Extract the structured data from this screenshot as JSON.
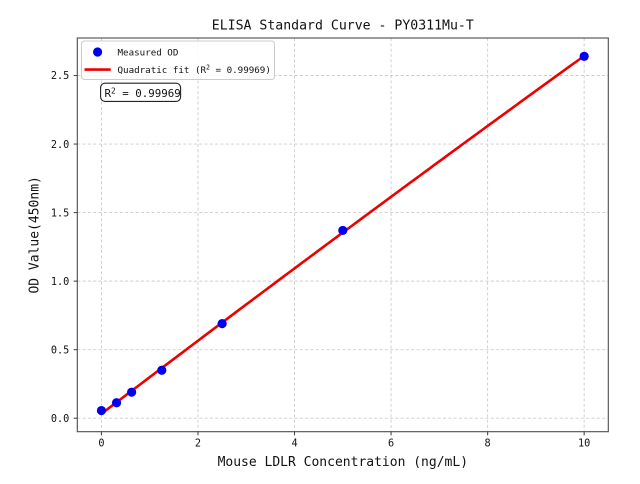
{
  "chart_data": {
    "type": "scatter",
    "title": "ELISA Standard Curve - PY0311Mu-T",
    "xlabel": "Mouse LDLR Concentration (ng/mL)",
    "ylabel": "OD Value(450nm)",
    "xlim": [
      -0.5,
      10.5
    ],
    "ylim": [
      -0.0983,
      2.7736
    ],
    "xticks": [
      0,
      2,
      4,
      6,
      8,
      10
    ],
    "yticks": [
      0.0,
      0.5,
      1.0,
      1.5,
      2.0,
      2.5
    ],
    "grid": true,
    "grid_style": "dashed",
    "legend_position": "upper-left",
    "series": [
      {
        "name": "Measured OD",
        "type": "scatter",
        "marker": "circle",
        "color": "#0000ee",
        "x": [
          0,
          0.313,
          0.625,
          1.25,
          2.5,
          5,
          10
        ],
        "y": [
          0.056,
          0.113,
          0.19,
          0.35,
          0.69,
          1.37,
          2.64
        ]
      },
      {
        "name": "Quadratic fit (R² = 0.99969)",
        "type": "line",
        "color": "#ee0000",
        "fit": "quadratic",
        "coefficients": {
          "a": -0.000681,
          "b": 0.267899,
          "c": 0.032203
        },
        "x_range": [
          0,
          10
        ]
      }
    ],
    "annotation": {
      "text": "R² = 0.99969"
    },
    "r_squared": 0.99969
  },
  "colors": {
    "background": "#ffffff",
    "marker_blue": "#0000ee",
    "fit_red": "#ee0000",
    "grid": "#cdcdcd",
    "spine": "#4a4a4a",
    "text": "#111111",
    "legend_border": "#cccccc"
  }
}
